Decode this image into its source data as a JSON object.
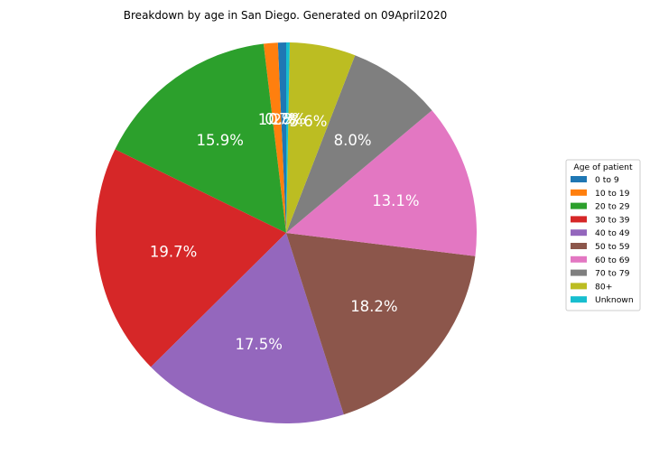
{
  "chart_data": {
    "type": "pie",
    "title": "Breakdown by age in San Diego. Generated on 09April2020",
    "legend_title": "Age of patient",
    "legend_placement": "right",
    "categories": [
      "0 to 9",
      "10 to 19",
      "20 to 29",
      "30 to 39",
      "40 to 49",
      "50 to 59",
      "60 to 69",
      "70 to 79",
      "80+",
      "Unknown"
    ],
    "values": [
      0.7,
      1.2,
      15.9,
      19.7,
      17.5,
      18.2,
      13.1,
      8.0,
      5.6,
      0.3
    ],
    "labels": [
      "0.7%",
      "1.2%",
      "15.9%",
      "19.7%",
      "17.5%",
      "18.2%",
      "13.1%",
      "8.0%",
      "5.6%",
      "0.3%"
    ],
    "colors": [
      "#1f77b4",
      "#ff7f0e",
      "#2ca02c",
      "#d62728",
      "#9467bd",
      "#8c564b",
      "#e377c2",
      "#7f7f7f",
      "#bcbd22",
      "#17becf"
    ],
    "start_angle_deg": 90,
    "direction": "counterclockwise"
  }
}
